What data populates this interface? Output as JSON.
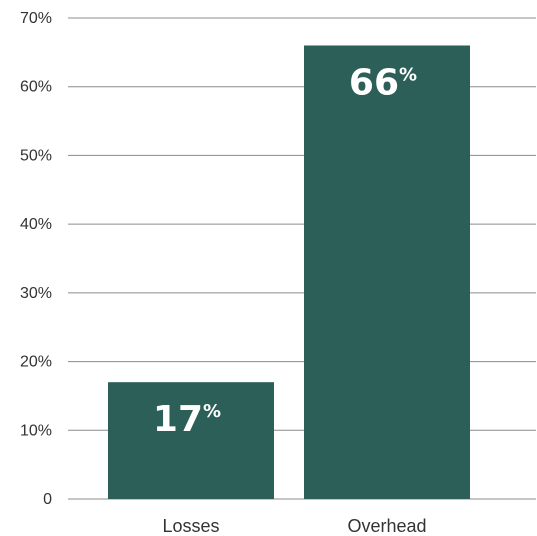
{
  "chart_data": {
    "type": "bar",
    "categories": [
      "Losses",
      "Overhead"
    ],
    "values": [
      17,
      66
    ],
    "data_labels": [
      {
        "number": "17",
        "unit": "%"
      },
      {
        "number": "66",
        "unit": "%"
      }
    ],
    "y_ticks": [
      "0",
      "10%",
      "20%",
      "30%",
      "40%",
      "50%",
      "60%",
      "70%"
    ],
    "ylim": [
      0,
      70
    ],
    "grid": true,
    "legend": "none",
    "bar_color": "#2c5f58",
    "grid_color": "#8c8c8c"
  }
}
